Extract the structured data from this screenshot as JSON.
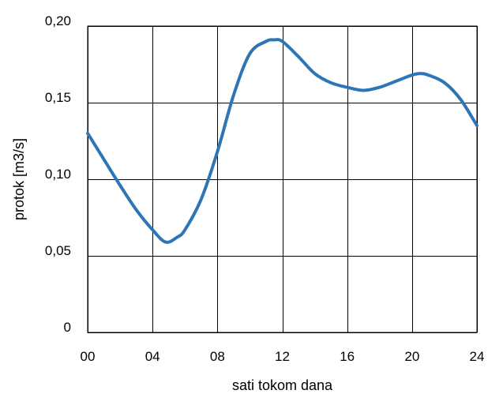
{
  "chart_data": {
    "type": "line",
    "title": "",
    "xlabel": "sati tokom dana",
    "ylabel": "protok [m3/s]",
    "xlim": [
      0,
      24
    ],
    "ylim": [
      0,
      0.2
    ],
    "x_ticks": [
      0,
      4,
      8,
      12,
      16,
      20,
      24
    ],
    "x_tick_labels": [
      "00",
      "04",
      "08",
      "12",
      "16",
      "20",
      "24"
    ],
    "y_ticks": [
      0,
      0.05,
      0.1,
      0.15,
      0.2
    ],
    "y_tick_labels": [
      "0",
      "0,05",
      "0,10",
      "0,15",
      "0,20"
    ],
    "grid": true,
    "legend": "none",
    "series": [
      {
        "color": "#2e75b6",
        "x": [
          0,
          1,
          2,
          3,
          4,
          4.8,
          5.5,
          6,
          7,
          8,
          9,
          10,
          11,
          11.5,
          12,
          13,
          14,
          15,
          16,
          17,
          18,
          19,
          20,
          20.5,
          21,
          22,
          23,
          24
        ],
        "y": [
          0.13,
          0.113,
          0.096,
          0.08,
          0.067,
          0.059,
          0.062,
          0.067,
          0.087,
          0.118,
          0.155,
          0.182,
          0.19,
          0.191,
          0.19,
          0.18,
          0.169,
          0.163,
          0.16,
          0.158,
          0.16,
          0.164,
          0.168,
          0.169,
          0.168,
          0.163,
          0.152,
          0.135
        ]
      }
    ]
  }
}
